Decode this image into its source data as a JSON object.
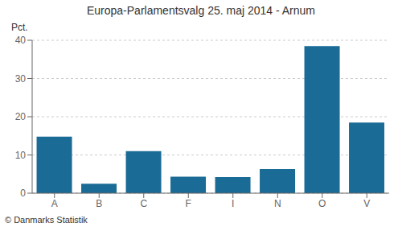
{
  "chart_data": {
    "type": "bar",
    "title": "Europa-Parlamentsvalg 25. maj 2014 - Arnum",
    "categories": [
      "A",
      "B",
      "C",
      "F",
      "I",
      "N",
      "O",
      "V"
    ],
    "values": [
      14.8,
      2.5,
      11.0,
      4.3,
      4.2,
      6.3,
      38.5,
      18.5
    ],
    "color": "#1a6b96",
    "ylabel": "Pct.",
    "ylim": [
      0,
      40
    ],
    "yticks": [
      0,
      10,
      20,
      30,
      40
    ],
    "grid": true,
    "annotations": [
      "© Danmarks Statistik"
    ]
  }
}
